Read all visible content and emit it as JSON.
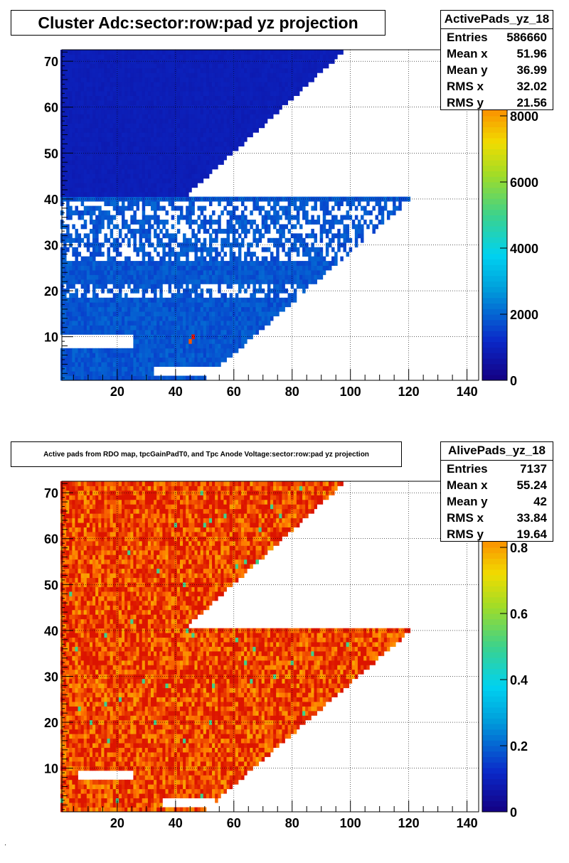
{
  "chart_data": [
    {
      "type": "heatmap",
      "title": "Cluster Adc:sector:row:pad yz projection",
      "histogram_name": "ActivePads_yz_18",
      "stats": [
        {
          "label": "Entries",
          "value": "586660"
        },
        {
          "label": "Mean x",
          "value": "51.96"
        },
        {
          "label": "Mean y",
          "value": "36.99"
        },
        {
          "label": "RMS x",
          "value": "32.02"
        },
        {
          "label": "RMS y",
          "value": "21.56"
        }
      ],
      "xlim": [
        1,
        144
      ],
      "ylim": [
        0.5,
        72.5
      ],
      "x_ticks": [
        20,
        40,
        60,
        80,
        100,
        120,
        140
      ],
      "x_tick_labels": [
        "20",
        "40",
        "60",
        "80",
        "100",
        "120",
        "140"
      ],
      "y_ticks": [
        10,
        20,
        30,
        40,
        50,
        60,
        70
      ],
      "y_tick_labels": [
        "10",
        "20",
        "30",
        "40",
        "50",
        "60",
        "70"
      ],
      "zlim": [
        0,
        10000
      ],
      "z_ticks": [
        0,
        2000,
        4000,
        6000,
        8000
      ],
      "z_tick_labels": [
        "0",
        "2000",
        "4000",
        "6000",
        "8000"
      ],
      "grid": true,
      "palette": "rainbow",
      "typical_value": 1800,
      "hot_cells": [
        {
          "x": 45,
          "y": 9,
          "value": 9000
        },
        {
          "x": 46,
          "y": 10,
          "value": 10000
        }
      ]
    },
    {
      "type": "heatmap",
      "title": "Active pads from RDO map, tpcGainPadT0,  and Tpc Anode Voltage:sector:row:pad yz projection",
      "histogram_name": "AlivePads_yz_18",
      "stats": [
        {
          "label": "Entries",
          "value": "7137"
        },
        {
          "label": "Mean x",
          "value": "55.24"
        },
        {
          "label": "Mean y",
          "value": "42"
        },
        {
          "label": "RMS x",
          "value": "33.84"
        },
        {
          "label": "RMS y",
          "value": "19.64"
        }
      ],
      "xlim": [
        1,
        144
      ],
      "ylim": [
        0.5,
        72.5
      ],
      "x_ticks": [
        20,
        40,
        60,
        80,
        100,
        120,
        140
      ],
      "x_tick_labels": [
        "20",
        "40",
        "60",
        "80",
        "100",
        "120",
        "140"
      ],
      "y_ticks": [
        10,
        20,
        30,
        40,
        50,
        60,
        70
      ],
      "y_tick_labels": [
        "10",
        "20",
        "30",
        "40",
        "50",
        "60",
        "70"
      ],
      "zlim": [
        0,
        1
      ],
      "z_ticks": [
        0,
        0.2,
        0.4,
        0.6,
        0.8
      ],
      "z_tick_labels": [
        "0",
        "0.2",
        "0.4",
        "0.6",
        "0.8"
      ],
      "grid": true,
      "palette": "rainbow",
      "typical_value": 0.93,
      "hot_cells": []
    }
  ]
}
